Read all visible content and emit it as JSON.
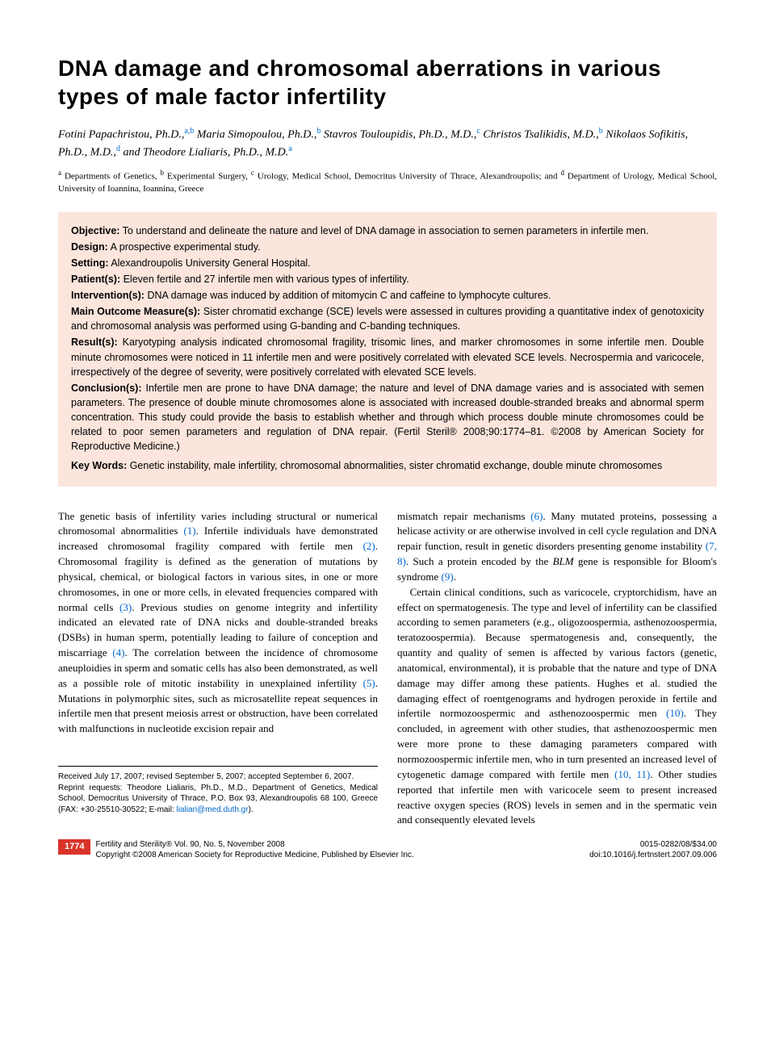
{
  "title": "DNA damage and chromosomal aberrations in various types of male factor infertility",
  "authors_html": "Fotini Papachristou, Ph.D.,<sup>a,b</sup> Maria Simopoulou, Ph.D.,<sup>b</sup> Stavros Touloupidis, Ph.D., M.D.,<sup>c</sup> Christos Tsalikidis, M.D.,<sup>b</sup> Nikolaos Sofikitis, Ph.D., M.D.,<sup>d</sup> and Theodore Lialiaris, Ph.D., M.D.<sup>a</sup>",
  "affiliations_html": "<sup>a</sup> Departments of Genetics, <sup>b</sup> Experimental Surgery, <sup>c</sup> Urology, Medical School, Democritus University of Thrace, Alexandroupolis; and <sup>d</sup> Department of Urology, Medical School, University of Ioannina, Ioannina, Greece",
  "abstract": {
    "objective": {
      "label": "Objective:",
      "text": " To understand and delineate the nature and level of DNA damage in association to semen parameters in infertile men."
    },
    "design": {
      "label": "Design:",
      "text": " A prospective experimental study."
    },
    "setting": {
      "label": "Setting:",
      "text": " Alexandroupolis University General Hospital."
    },
    "patients": {
      "label": "Patient(s):",
      "text": " Eleven fertile and 27 infertile men with various types of infertility."
    },
    "interventions": {
      "label": "Intervention(s):",
      "text": " DNA damage was induced by addition of mitomycin C and caffeine to lymphocyte cultures."
    },
    "measures": {
      "label": "Main Outcome Measure(s):",
      "text": " Sister chromatid exchange (SCE) levels were assessed in cultures providing a quantitative index of genotoxicity and chromosomal analysis was performed using G-banding and C-banding techniques."
    },
    "results": {
      "label": "Result(s):",
      "text": " Karyotyping analysis indicated chromosomal fragility, trisomic lines, and marker chromosomes in some infertile men. Double minute chromosomes were noticed in 11 infertile men and were positively correlated with elevated SCE levels. Necrospermia and varicocele, irrespectively of the degree of severity, were positively correlated with elevated SCE levels."
    },
    "conclusions": {
      "label": "Conclusion(s):",
      "text": " Infertile men are prone to have DNA damage; the nature and level of DNA damage varies and is associated with semen parameters. The presence of double minute chromosomes alone is associated with increased double-stranded breaks and abnormal sperm concentration. This study could provide the basis to establish whether and through which process double minute chromosomes could be related to poor semen parameters and regulation of DNA repair. (Fertil Steril® 2008;90:1774–81. ©2008 by American Society for Reproductive Medicine.)"
    },
    "keywords": {
      "label": "Key Words:",
      "text": " Genetic instability, male infertility, chromosomal abnormalities, sister chromatid exchange, double minute chromosomes"
    }
  },
  "body": {
    "col1_html": "The genetic basis of infertility varies including structural or numerical chromosomal abnormalities <span class=\"ref-link\">(1)</span>. Infertile individuals have demonstrated increased chromosomal fragility compared with fertile men <span class=\"ref-link\">(2)</span>. Chromosomal fragility is defined as the generation of mutations by physical, chemical, or biological factors in various sites, in one or more chromosomes, in one or more cells, in elevated frequencies compared with normal cells <span class=\"ref-link\">(3)</span>. Previous studies on genome integrity and infertility indicated an elevated rate of DNA nicks and double-stranded breaks (DSBs) in human sperm, potentially leading to failure of conception and miscarriage <span class=\"ref-link\">(4)</span>. The correlation between the incidence of chromosome aneuploidies in sperm and somatic cells has also been demonstrated, as well as a possible role of mitotic instability in unexplained infertility <span class=\"ref-link\">(5)</span>. Mutations in polymorphic sites, such as microsatellite repeat sequences in infertile men that present meiosis arrest or obstruction, have been correlated with malfunctions in nucleotide excision repair and",
    "col2_p1_html": "mismatch repair mechanisms <span class=\"ref-link\">(6)</span>. Many mutated proteins, possessing a helicase activity or are otherwise involved in cell cycle regulation and DNA repair function, result in genetic disorders presenting genome instability <span class=\"ref-link\">(7, 8)</span>. Such a protein encoded by the <span class=\"em\">BLM</span> gene is responsible for Bloom's syndrome <span class=\"ref-link\">(9)</span>.",
    "col2_p2_html": "Certain clinical conditions, such as varicocele, cryptorchidism, have an effect on spermatogenesis. The type and level of infertility can be classified according to semen parameters (e.g., oligozoospermia, asthenozoospermia, teratozoospermia). Because spermatogenesis and, consequently, the quantity and quality of semen is affected by various factors (genetic, anatomical, environmental), it is probable that the nature and type of DNA damage may differ among these patients. Hughes et al. studied the damaging effect of roentgenograms and hydrogen peroxide in fertile and infertile normozoospermic and asthenozoospermic men <span class=\"ref-link\">(10)</span>. They concluded, in agreement with other studies, that asthenozoospermic men were more prone to these damaging parameters compared with normozoospermic infertile men, who in turn presented an increased level of cytogenetic damage compared with fertile men <span class=\"ref-link\">(10, 11)</span>. Other studies reported that infertile men with varicocele seem to present increased reactive oxygen species (ROS) levels in semen and in the spermatic vein and consequently elevated levels"
  },
  "footnotes": {
    "received": "Received July 17, 2007; revised September 5, 2007; accepted September 6, 2007.",
    "reprint_pre": "Reprint requests: Theodore Lialiaris, Ph.D., M.D., Department of Genetics, Medical School, Democritus University of Thrace, P.O. Box 93, Alexandroupolis 68 100, Greece (FAX: +30-25510-30522; E-mail: ",
    "email": "lialiari@med.duth.gr",
    "reprint_post": ")."
  },
  "footer": {
    "page_number": "1774",
    "journal_line1": "Fertility and Sterility® Vol. 90, No. 5, November 2008",
    "journal_line2": "Copyright ©2008 American Society for Reproductive Medicine, Published by Elsevier Inc.",
    "right_line1": "0015-0282/08/$34.00",
    "right_line2": "doi:10.1016/j.fertnstert.2007.09.006"
  },
  "colors": {
    "abstract_bg": "#fce5dc",
    "link": "#0066cc",
    "badge": "#d9332a",
    "text": "#000000",
    "page_bg": "#ffffff"
  }
}
